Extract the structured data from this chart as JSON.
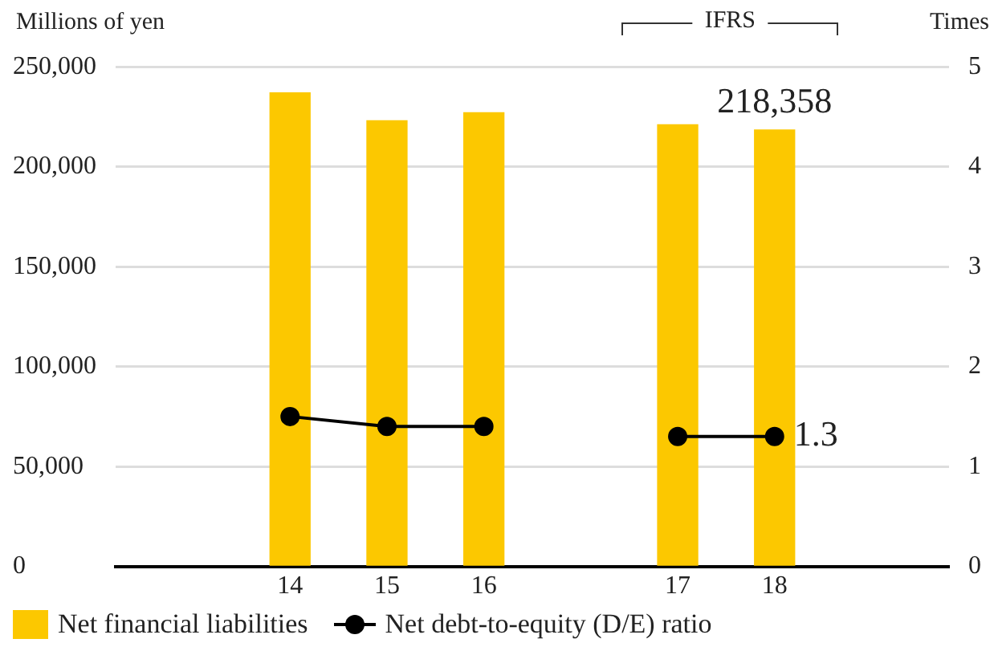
{
  "chart_data": {
    "type": "bar",
    "ylabel": "Millions of yen",
    "y2label": "Times",
    "annotations": [
      "IFRS"
    ],
    "categories": [
      "14",
      "15",
      "16",
      null,
      "17",
      "18"
    ],
    "series": [
      {
        "name": "Net financial liabilities",
        "color": "#fcc800",
        "values": [
          237000,
          223000,
          227000,
          null,
          221000,
          218358
        ],
        "value_labels": [
          null,
          null,
          null,
          null,
          null,
          "218,358"
        ]
      },
      {
        "type": "line",
        "axis": "y2",
        "name": "Net debt-to-equity (D/E) ratio",
        "color": "#000000",
        "values": [
          1.5,
          1.4,
          1.4,
          null,
          1.3,
          1.3
        ],
        "value_labels": [
          null,
          null,
          null,
          null,
          null,
          "1.3"
        ]
      }
    ],
    "ylim": [
      0,
      250000
    ],
    "yticks": [
      {
        "value": 0,
        "label": "0"
      },
      {
        "value": 50000,
        "label": "50,000"
      },
      {
        "value": 100000,
        "label": "100,000"
      },
      {
        "value": 150000,
        "label": "150,000"
      },
      {
        "value": 200000,
        "label": "200,000"
      },
      {
        "value": 250000,
        "label": "250,000"
      }
    ],
    "y2lim": [
      0,
      5
    ],
    "y2ticks": [
      0,
      1,
      2,
      3,
      4,
      5
    ],
    "grid": "y",
    "legend": "bottom left",
    "marker": "circle",
    "line_style": "solid"
  }
}
